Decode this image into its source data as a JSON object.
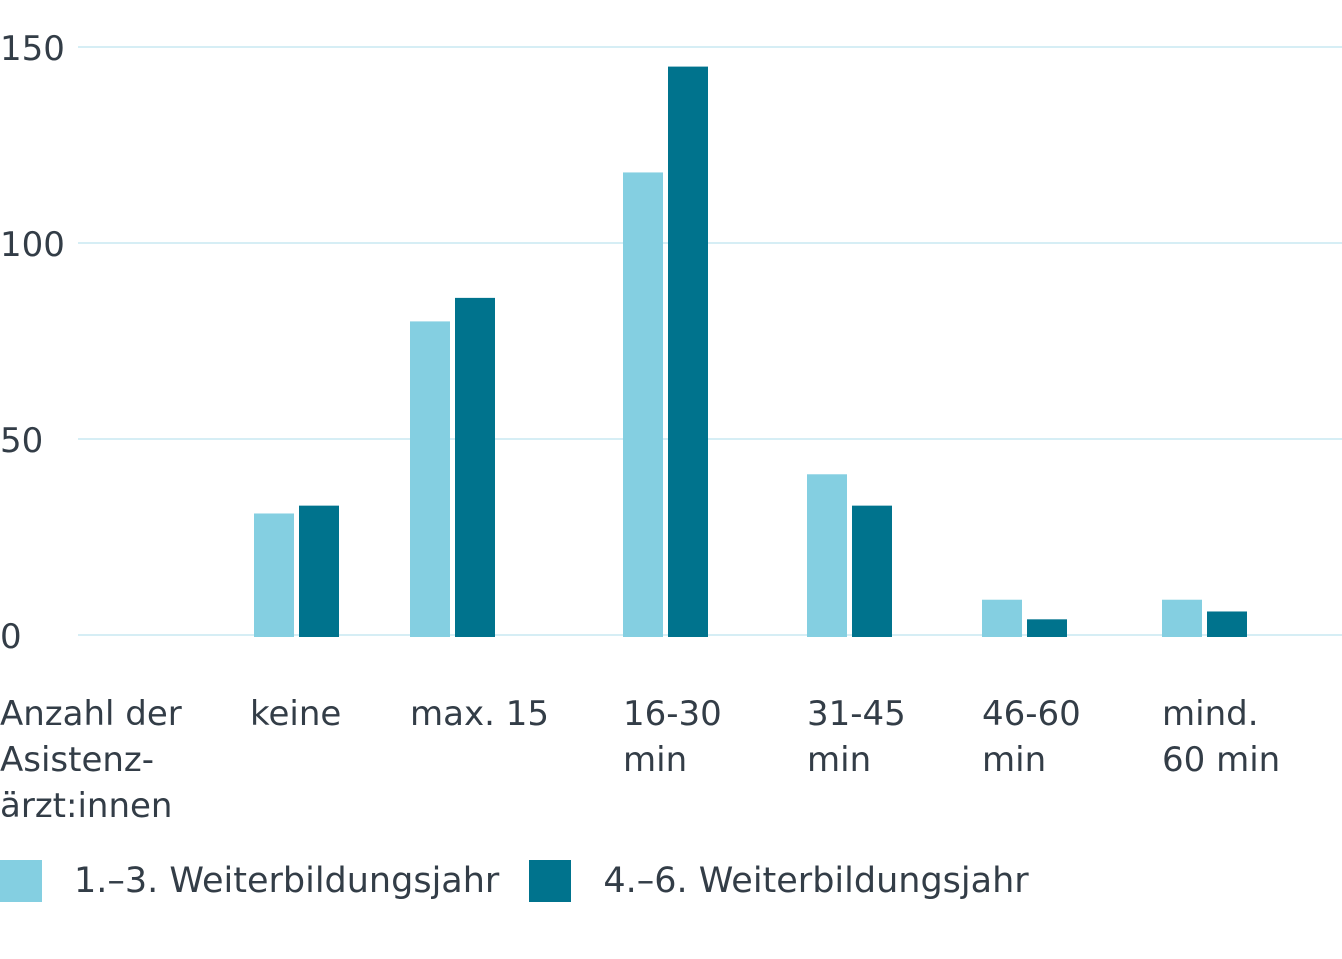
{
  "chart_data": {
    "type": "bar",
    "y_axis_title": "Anzahl der Asistenz- ärzt:innen",
    "y_axis_title_lines": [
      "Anzahl der",
      "Asistenz-",
      "ärzt:innen"
    ],
    "categories": [
      "keine",
      "max. 15",
      "16-30 min",
      "31-45 min",
      "46-60 min",
      "mind. 60 min"
    ],
    "category_lines": [
      [
        "keine"
      ],
      [
        "max. 15"
      ],
      [
        "16-30",
        "min"
      ],
      [
        "31-45",
        "min"
      ],
      [
        "46-60",
        "min"
      ],
      [
        "mind.",
        "60 min"
      ]
    ],
    "series": [
      {
        "name": "1.–3.  Weiterbildungsjahr",
        "color": "#84cfe1",
        "values": [
          31,
          80,
          118,
          41,
          9,
          9
        ]
      },
      {
        "name": "4.–6.  Weiterbildungsjahr",
        "color": "#00738d",
        "values": [
          33,
          86,
          145,
          33,
          4,
          6
        ]
      }
    ],
    "yticks": [
      0,
      50,
      100,
      150
    ],
    "ylim": [
      0,
      150
    ],
    "grid": true,
    "grid_color": "#d6eef5",
    "legend_position": "bottom-left"
  }
}
